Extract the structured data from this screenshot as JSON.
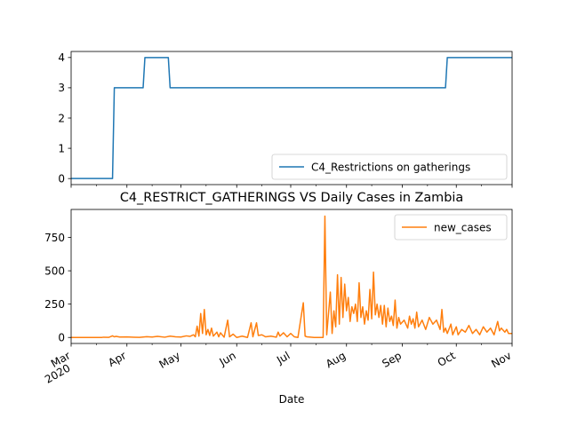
{
  "chart_data": [
    {
      "type": "line",
      "xlabel": "",
      "ylabel": "",
      "ylim": [
        -0.2,
        4.2
      ],
      "yticks": [
        0,
        1,
        2,
        3,
        4
      ],
      "legend": {
        "placement": "lower-right"
      },
      "series": [
        {
          "name": "C4_Restrictions on gatherings",
          "color": "#1f77b4",
          "step": true,
          "points": [
            [
              "2020-03-01",
              0
            ],
            [
              "2020-03-24",
              0
            ],
            [
              "2020-03-25",
              3
            ],
            [
              "2020-04-10",
              3
            ],
            [
              "2020-04-11",
              4
            ],
            [
              "2020-04-24",
              4
            ],
            [
              "2020-04-25",
              3
            ],
            [
              "2020-09-25",
              3
            ],
            [
              "2020-09-26",
              4
            ],
            [
              "2020-11-01",
              4
            ]
          ]
        }
      ]
    },
    {
      "type": "line",
      "title": "C4_RESTRICT_GATHERINGS VS Daily Cases in Zambia",
      "xlabel": "Date",
      "ylabel": "",
      "ylim": [
        -45,
        960
      ],
      "yticks": [
        0,
        250,
        500,
        750
      ],
      "xlim": [
        "2020-03-01",
        "2020-11-01"
      ],
      "xticks": [
        {
          "date": "2020-03-01",
          "label": "Mar",
          "sub": "2020"
        },
        {
          "date": "2020-04-01",
          "label": "Apr",
          "sub": ""
        },
        {
          "date": "2020-05-01",
          "label": "May",
          "sub": ""
        },
        {
          "date": "2020-06-01",
          "label": "Jun",
          "sub": ""
        },
        {
          "date": "2020-07-01",
          "label": "Jul",
          "sub": ""
        },
        {
          "date": "2020-08-01",
          "label": "Aug",
          "sub": ""
        },
        {
          "date": "2020-09-01",
          "label": "Sep",
          "sub": ""
        },
        {
          "date": "2020-10-01",
          "label": "Oct",
          "sub": ""
        },
        {
          "date": "2020-11-01",
          "label": "Nov",
          "sub": ""
        }
      ],
      "legend": {
        "placement": "upper-right"
      },
      "series": [
        {
          "name": "new_cases",
          "color": "#ff7f0e",
          "points": [
            [
              "2020-03-01",
              0
            ],
            [
              "2020-03-18",
              0
            ],
            [
              "2020-03-19",
              2
            ],
            [
              "2020-03-22",
              1
            ],
            [
              "2020-03-24",
              12
            ],
            [
              "2020-03-25",
              5
            ],
            [
              "2020-03-26",
              8
            ],
            [
              "2020-03-28",
              3
            ],
            [
              "2020-04-01",
              4
            ],
            [
              "2020-04-05",
              2
            ],
            [
              "2020-04-08",
              1
            ],
            [
              "2020-04-12",
              6
            ],
            [
              "2020-04-15",
              3
            ],
            [
              "2020-04-18",
              8
            ],
            [
              "2020-04-22",
              2
            ],
            [
              "2020-04-25",
              10
            ],
            [
              "2020-04-28",
              5
            ],
            [
              "2020-05-01",
              3
            ],
            [
              "2020-05-04",
              12
            ],
            [
              "2020-05-06",
              8
            ],
            [
              "2020-05-08",
              20
            ],
            [
              "2020-05-09",
              5
            ],
            [
              "2020-05-10",
              85
            ],
            [
              "2020-05-11",
              10
            ],
            [
              "2020-05-12",
              180
            ],
            [
              "2020-05-13",
              30
            ],
            [
              "2020-05-14",
              210
            ],
            [
              "2020-05-15",
              20
            ],
            [
              "2020-05-16",
              60
            ],
            [
              "2020-05-17",
              15
            ],
            [
              "2020-05-18",
              70
            ],
            [
              "2020-05-19",
              10
            ],
            [
              "2020-05-21",
              40
            ],
            [
              "2020-05-22",
              5
            ],
            [
              "2020-05-23",
              35
            ],
            [
              "2020-05-25",
              2
            ],
            [
              "2020-05-27",
              130
            ],
            [
              "2020-05-28",
              5
            ],
            [
              "2020-05-30",
              25
            ],
            [
              "2020-06-01",
              0
            ],
            [
              "2020-06-04",
              10
            ],
            [
              "2020-06-07",
              0
            ],
            [
              "2020-06-09",
              110
            ],
            [
              "2020-06-10",
              5
            ],
            [
              "2020-06-12",
              110
            ],
            [
              "2020-06-13",
              15
            ],
            [
              "2020-06-15",
              20
            ],
            [
              "2020-06-17",
              5
            ],
            [
              "2020-06-20",
              10
            ],
            [
              "2020-06-23",
              2
            ],
            [
              "2020-06-24",
              40
            ],
            [
              "2020-06-25",
              10
            ],
            [
              "2020-06-27",
              35
            ],
            [
              "2020-06-29",
              5
            ],
            [
              "2020-07-01",
              30
            ],
            [
              "2020-07-03",
              5
            ],
            [
              "2020-07-05",
              0
            ],
            [
              "2020-07-08",
              260
            ],
            [
              "2020-07-09",
              10
            ],
            [
              "2020-07-10",
              5
            ],
            [
              "2020-07-14",
              0
            ],
            [
              "2020-07-19",
              0
            ],
            [
              "2020-07-20",
              910
            ],
            [
              "2020-07-21",
              20
            ],
            [
              "2020-07-23",
              340
            ],
            [
              "2020-07-24",
              30
            ],
            [
              "2020-07-25",
              200
            ],
            [
              "2020-07-26",
              80
            ],
            [
              "2020-07-27",
              470
            ],
            [
              "2020-07-28",
              100
            ],
            [
              "2020-07-29",
              450
            ],
            [
              "2020-07-30",
              150
            ],
            [
              "2020-07-31",
              400
            ],
            [
              "2020-08-01",
              200
            ],
            [
              "2020-08-02",
              300
            ],
            [
              "2020-08-03",
              120
            ],
            [
              "2020-08-04",
              230
            ],
            [
              "2020-08-05",
              180
            ],
            [
              "2020-08-06",
              250
            ],
            [
              "2020-08-07",
              120
            ],
            [
              "2020-08-08",
              410
            ],
            [
              "2020-08-09",
              150
            ],
            [
              "2020-08-10",
              230
            ],
            [
              "2020-08-11",
              100
            ],
            [
              "2020-08-12",
              200
            ],
            [
              "2020-08-13",
              130
            ],
            [
              "2020-08-14",
              360
            ],
            [
              "2020-08-15",
              140
            ],
            [
              "2020-08-16",
              490
            ],
            [
              "2020-08-17",
              170
            ],
            [
              "2020-08-18",
              250
            ],
            [
              "2020-08-19",
              150
            ],
            [
              "2020-08-20",
              240
            ],
            [
              "2020-08-21",
              100
            ],
            [
              "2020-08-22",
              240
            ],
            [
              "2020-08-23",
              80
            ],
            [
              "2020-08-24",
              220
            ],
            [
              "2020-08-25",
              120
            ],
            [
              "2020-08-26",
              160
            ],
            [
              "2020-08-27",
              90
            ],
            [
              "2020-08-28",
              280
            ],
            [
              "2020-08-29",
              70
            ],
            [
              "2020-08-30",
              150
            ],
            [
              "2020-08-31",
              100
            ],
            [
              "2020-09-02",
              130
            ],
            [
              "2020-09-04",
              70
            ],
            [
              "2020-09-05",
              160
            ],
            [
              "2020-09-06",
              100
            ],
            [
              "2020-09-07",
              140
            ],
            [
              "2020-09-08",
              70
            ],
            [
              "2020-09-09",
              190
            ],
            [
              "2020-09-10",
              80
            ],
            [
              "2020-09-12",
              130
            ],
            [
              "2020-09-14",
              60
            ],
            [
              "2020-09-16",
              150
            ],
            [
              "2020-09-18",
              100
            ],
            [
              "2020-09-20",
              130
            ],
            [
              "2020-09-22",
              60
            ],
            [
              "2020-09-23",
              210
            ],
            [
              "2020-09-24",
              40
            ],
            [
              "2020-09-25",
              70
            ],
            [
              "2020-09-26",
              30
            ],
            [
              "2020-09-28",
              100
            ],
            [
              "2020-09-29",
              20
            ],
            [
              "2020-10-01",
              80
            ],
            [
              "2020-10-02",
              20
            ],
            [
              "2020-10-04",
              60
            ],
            [
              "2020-10-06",
              40
            ],
            [
              "2020-10-08",
              90
            ],
            [
              "2020-10-10",
              30
            ],
            [
              "2020-10-12",
              60
            ],
            [
              "2020-10-14",
              20
            ],
            [
              "2020-10-16",
              80
            ],
            [
              "2020-10-18",
              40
            ],
            [
              "2020-10-20",
              70
            ],
            [
              "2020-10-22",
              20
            ],
            [
              "2020-10-24",
              120
            ],
            [
              "2020-10-25",
              50
            ],
            [
              "2020-10-26",
              70
            ],
            [
              "2020-10-28",
              40
            ],
            [
              "2020-10-29",
              60
            ],
            [
              "2020-10-30",
              30
            ],
            [
              "2020-11-01",
              30
            ]
          ]
        }
      ]
    }
  ]
}
